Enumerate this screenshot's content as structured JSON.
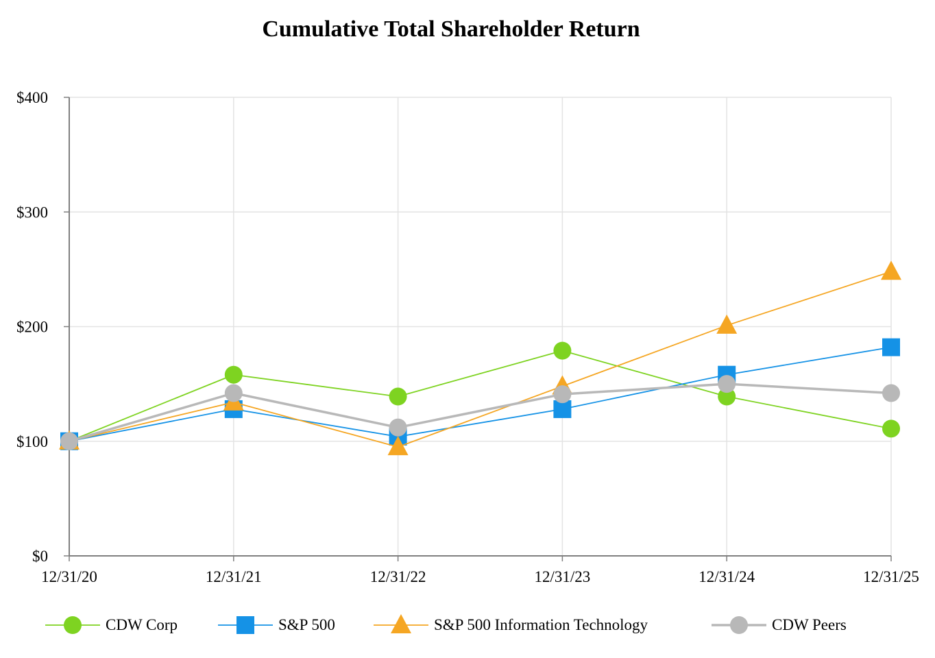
{
  "chart_data": {
    "type": "line",
    "title": "Cumulative Total Shareholder Return",
    "xlabel": "",
    "ylabel": "",
    "categories": [
      "12/31/20",
      "12/31/21",
      "12/31/22",
      "12/31/23",
      "12/31/24",
      "12/31/25"
    ],
    "ylim": [
      0,
      400
    ],
    "yticks": [
      0,
      100,
      200,
      300,
      400
    ],
    "ytick_labels": [
      "$0",
      "$100",
      "$200",
      "$300",
      "$400"
    ],
    "grid": true,
    "legend_position": "bottom",
    "series": [
      {
        "name": "CDW Corp",
        "values": [
          100,
          158,
          139,
          179,
          139,
          111
        ],
        "color": "#7ED321",
        "marker": "circle",
        "line_width": "thin"
      },
      {
        "name": "S&P 500",
        "values": [
          100,
          128,
          104,
          128,
          158,
          182
        ],
        "color": "#1592E6",
        "marker": "square",
        "line_width": "thin"
      },
      {
        "name": "S&P 500 Information Technology",
        "values": [
          100,
          134,
          95,
          148,
          201,
          248
        ],
        "color": "#F5A623",
        "marker": "triangle",
        "line_width": "thin"
      },
      {
        "name": "CDW Peers",
        "values": [
          100,
          142,
          112,
          141,
          150,
          142
        ],
        "color": "#B8B8B8",
        "marker": "circle",
        "line_width": "thick"
      }
    ]
  }
}
